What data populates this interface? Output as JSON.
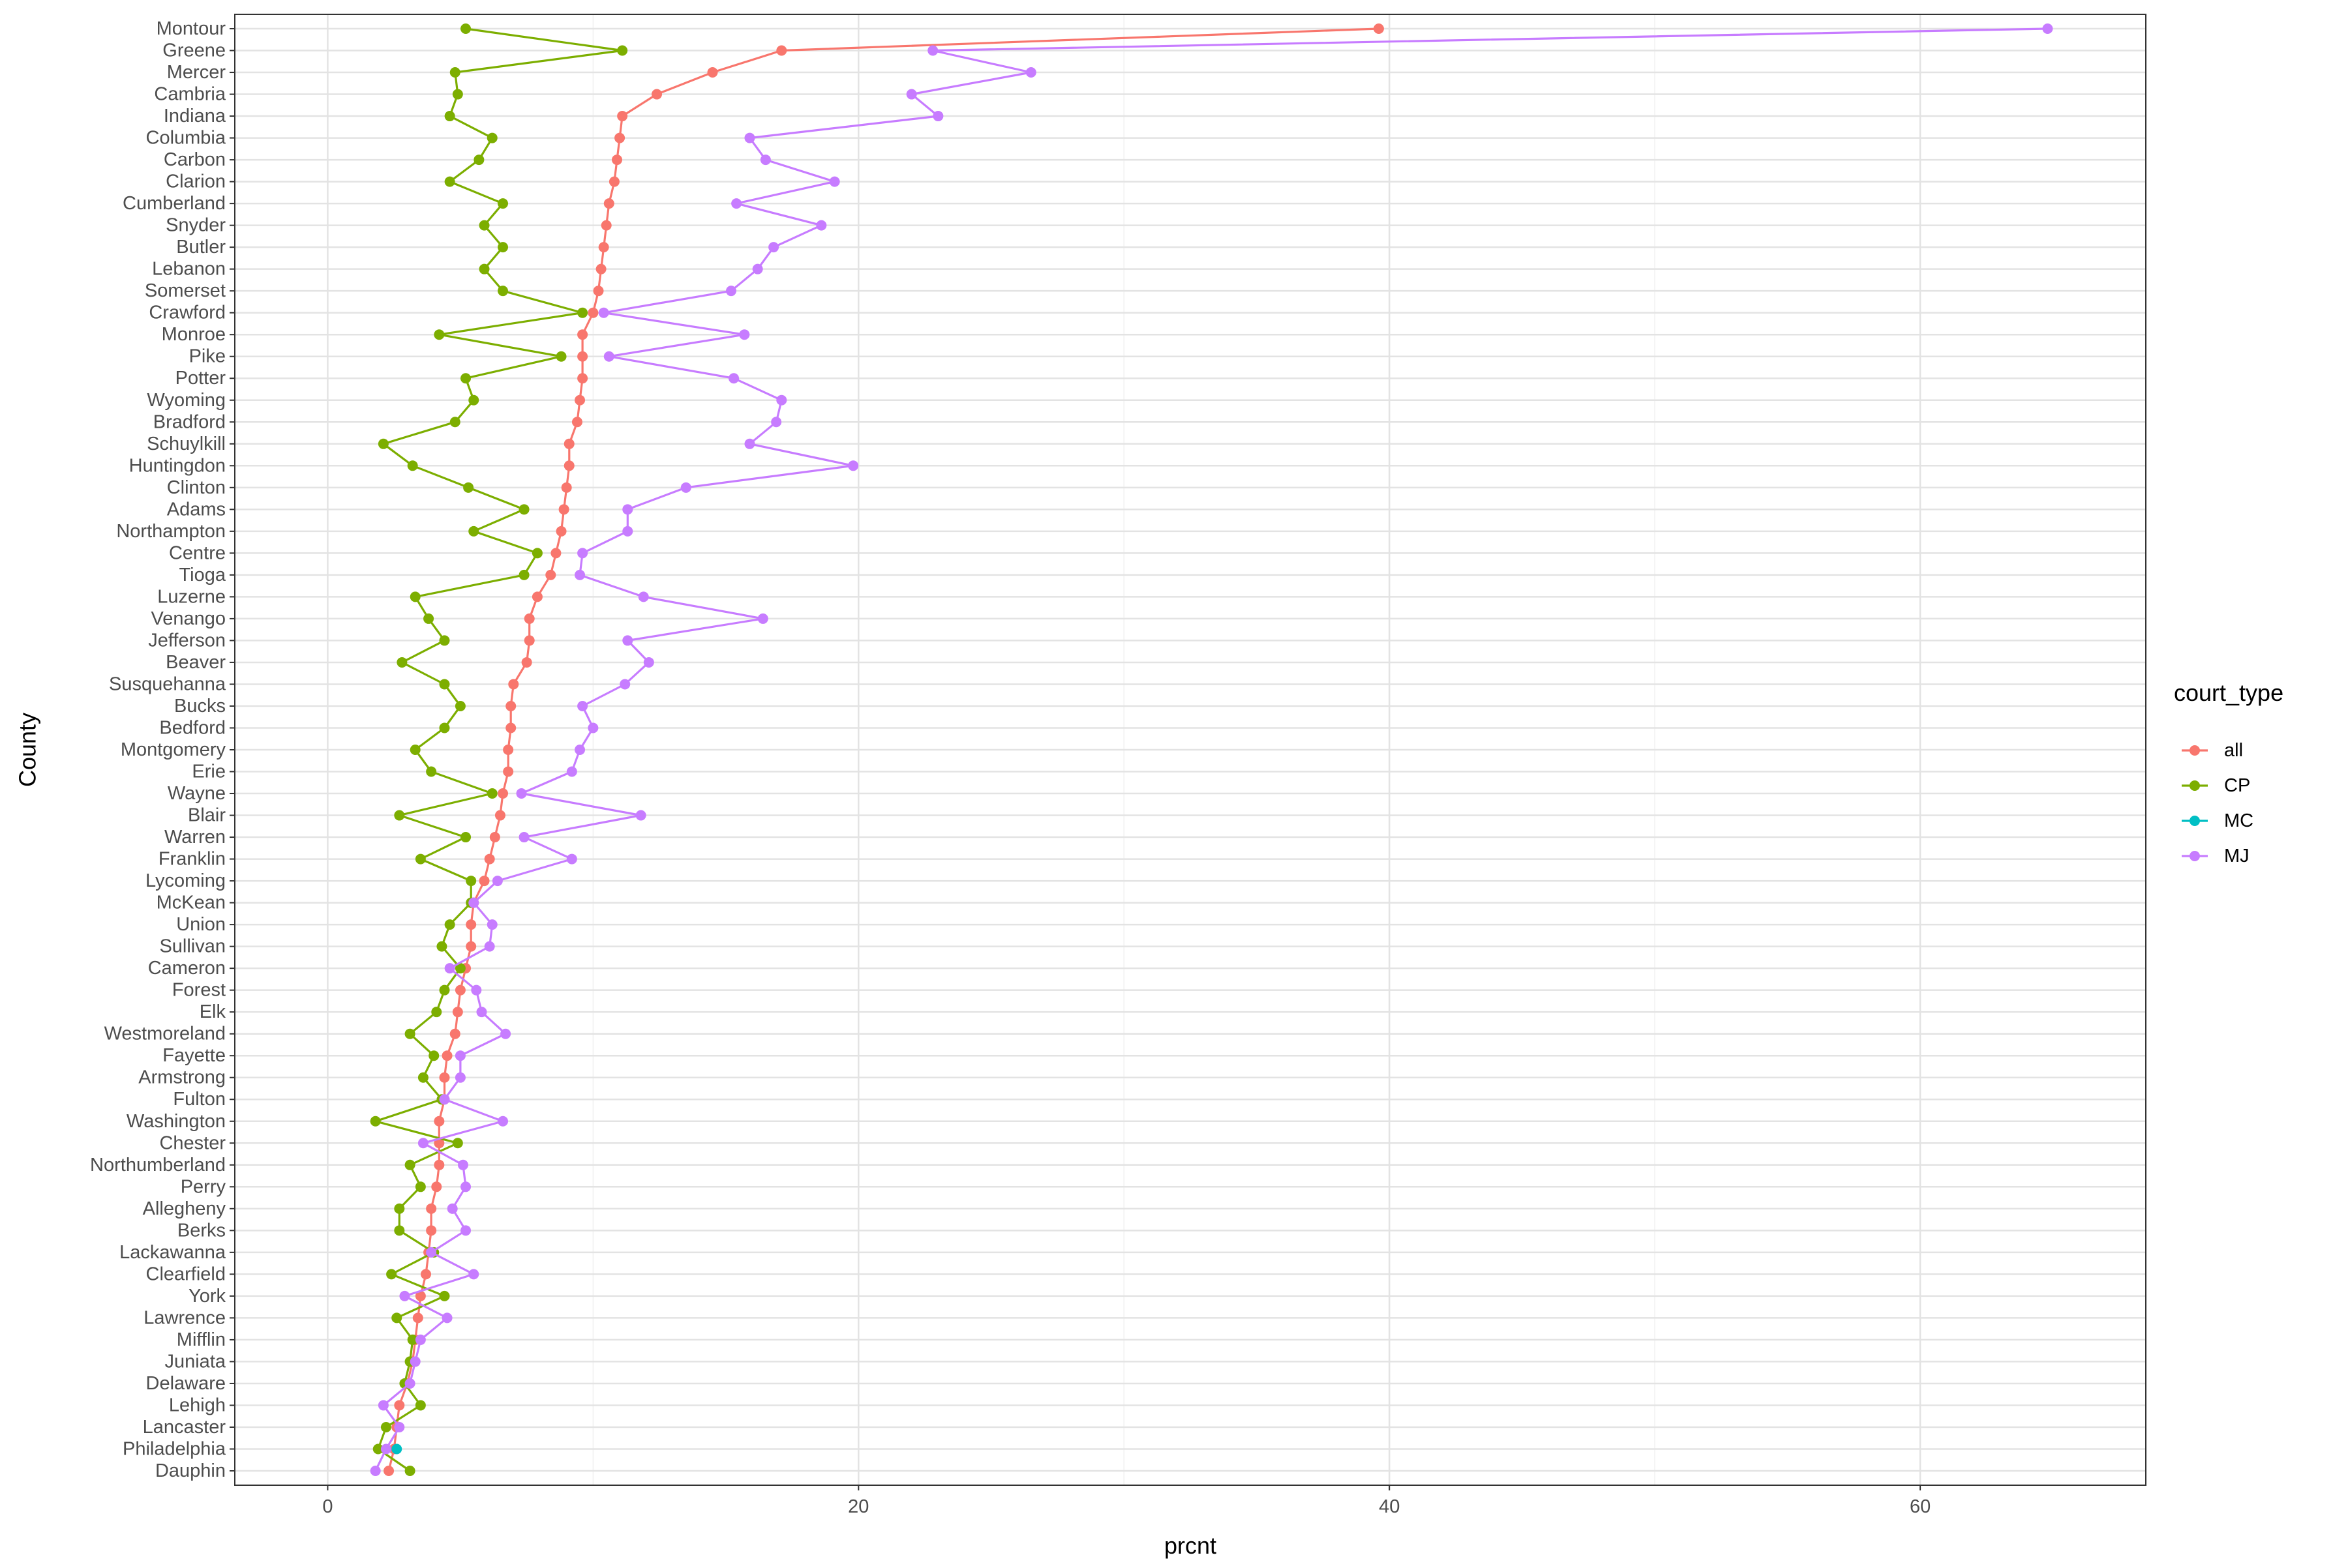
{
  "chart_data": {
    "type": "line",
    "xlabel": "prcnt",
    "ylabel": "County",
    "xlim": [
      -3.5,
      68.5
    ],
    "x_ticks": [
      0,
      20,
      40,
      60
    ],
    "x_tick_labels": [
      "0",
      "20",
      "40",
      "60"
    ],
    "grid": true,
    "legend": {
      "title": "court_type",
      "placement": "right",
      "entries": [
        {
          "label": "all",
          "color": "#F8766D"
        },
        {
          "label": "CP",
          "color": "#7CAE00"
        },
        {
          "label": "MC",
          "color": "#00BFC4"
        },
        {
          "label": "MJ",
          "color": "#C77CFF"
        }
      ]
    },
    "categories": [
      "Montour",
      "Greene",
      "Mercer",
      "Cambria",
      "Indiana",
      "Columbia",
      "Carbon",
      "Clarion",
      "Cumberland",
      "Snyder",
      "Butler",
      "Lebanon",
      "Somerset",
      "Crawford",
      "Monroe",
      "Pike",
      "Potter",
      "Wyoming",
      "Bradford",
      "Schuylkill",
      "Huntingdon",
      "Clinton",
      "Adams",
      "Northampton",
      "Centre",
      "Tioga",
      "Luzerne",
      "Venango",
      "Jefferson",
      "Beaver",
      "Susquehanna",
      "Bucks",
      "Bedford",
      "Montgomery",
      "Erie",
      "Wayne",
      "Blair",
      "Warren",
      "Franklin",
      "Lycoming",
      "McKean",
      "Union",
      "Sullivan",
      "Cameron",
      "Forest",
      "Elk",
      "Westmoreland",
      "Fayette",
      "Armstrong",
      "Fulton",
      "Washington",
      "Chester",
      "Northumberland",
      "Perry",
      "Allegheny",
      "Berks",
      "Lackawanna",
      "Clearfield",
      "York",
      "Lawrence",
      "Mifflin",
      "Juniata",
      "Delaware",
      "Lehigh",
      "Lancaster",
      "Philadelphia",
      "Dauphin"
    ],
    "series": [
      {
        "name": "all",
        "color": "#F8766D",
        "values": [
          39.6,
          17.1,
          14.5,
          12.4,
          11.1,
          11.0,
          10.9,
          10.8,
          10.6,
          10.5,
          10.4,
          10.3,
          10.2,
          10.0,
          9.6,
          9.6,
          9.6,
          9.5,
          9.4,
          9.1,
          9.1,
          9.0,
          8.9,
          8.8,
          8.6,
          8.4,
          7.9,
          7.6,
          7.6,
          7.5,
          7.0,
          6.9,
          6.9,
          6.8,
          6.8,
          6.6,
          6.5,
          6.3,
          6.1,
          5.9,
          5.5,
          5.4,
          5.4,
          5.2,
          5.0,
          4.9,
          4.8,
          4.5,
          4.4,
          4.4,
          4.2,
          4.2,
          4.2,
          4.1,
          3.9,
          3.9,
          3.8,
          3.7,
          3.5,
          3.4,
          3.3,
          3.2,
          3.0,
          2.7,
          2.6,
          2.5,
          2.3
        ]
      },
      {
        "name": "CP",
        "color": "#7CAE00",
        "values": [
          5.2,
          11.1,
          4.8,
          4.9,
          4.6,
          6.2,
          5.7,
          4.6,
          6.6,
          5.9,
          6.6,
          5.9,
          6.6,
          9.6,
          4.2,
          8.8,
          5.2,
          5.5,
          4.8,
          2.1,
          3.2,
          5.3,
          7.4,
          5.5,
          7.9,
          7.4,
          3.3,
          3.8,
          4.4,
          2.8,
          4.4,
          5.0,
          4.4,
          3.3,
          3.9,
          6.2,
          2.7,
          5.2,
          3.5,
          5.4,
          5.4,
          4.6,
          4.3,
          5.0,
          4.4,
          4.1,
          3.1,
          4.0,
          3.6,
          4.3,
          1.8,
          4.9,
          3.1,
          3.5,
          2.7,
          2.7,
          4.0,
          2.4,
          4.4,
          2.6,
          3.2,
          3.1,
          2.9,
          3.5,
          2.2,
          1.9,
          3.1
        ]
      },
      {
        "name": "MC",
        "color": "#00BFC4",
        "values": [
          null,
          null,
          null,
          null,
          null,
          null,
          null,
          null,
          null,
          null,
          null,
          null,
          null,
          null,
          null,
          null,
          null,
          null,
          null,
          null,
          null,
          null,
          null,
          null,
          null,
          null,
          null,
          null,
          null,
          null,
          null,
          null,
          null,
          null,
          null,
          null,
          null,
          null,
          null,
          null,
          null,
          null,
          null,
          null,
          null,
          null,
          null,
          null,
          null,
          null,
          null,
          null,
          null,
          null,
          null,
          null,
          null,
          null,
          null,
          null,
          null,
          null,
          null,
          null,
          null,
          2.6,
          null
        ]
      },
      {
        "name": "MJ",
        "color": "#C77CFF",
        "values": [
          64.8,
          22.8,
          26.5,
          22.0,
          23.0,
          15.9,
          16.5,
          19.1,
          15.4,
          18.6,
          16.8,
          16.2,
          15.2,
          10.4,
          15.7,
          10.6,
          15.3,
          17.1,
          16.9,
          15.9,
          19.8,
          13.5,
          11.3,
          11.3,
          9.6,
          9.5,
          11.9,
          16.4,
          11.3,
          12.1,
          11.2,
          9.6,
          10.0,
          9.5,
          9.2,
          7.3,
          11.8,
          7.4,
          9.2,
          6.4,
          5.5,
          6.2,
          6.1,
          4.6,
          5.6,
          5.8,
          6.7,
          5.0,
          5.0,
          4.4,
          6.6,
          3.6,
          5.1,
          5.2,
          4.7,
          5.2,
          3.9,
          5.5,
          2.9,
          4.5,
          3.5,
          3.3,
          3.1,
          2.1,
          2.7,
          2.2,
          1.8
        ]
      }
    ]
  }
}
